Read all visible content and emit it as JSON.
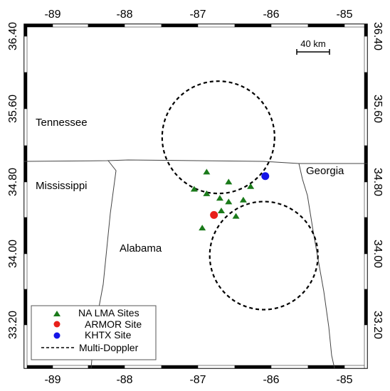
{
  "map": {
    "x_axis": {
      "ticks": [
        "-89",
        "-88",
        "-87",
        "-86",
        "-85"
      ]
    },
    "y_axis": {
      "ticks_left": [
        "36.40",
        "35.60",
        "34.80",
        "34.00",
        "33.20"
      ],
      "ticks_right": [
        "36.40",
        "35.60",
        "34.80",
        "34.00",
        "33.20"
      ]
    },
    "regions": [
      {
        "id": "tennessee",
        "label": "Tennessee"
      },
      {
        "id": "mississippi",
        "label": "Mississippi"
      },
      {
        "id": "alabama",
        "label": "Alabama"
      },
      {
        "id": "georgia",
        "label": "Georgia"
      }
    ],
    "scale_bar": {
      "label": "40 km"
    },
    "sites": {
      "lma": [
        {
          "lon": -86.88,
          "lat": 34.91
        },
        {
          "lon": -87.05,
          "lat": 34.72
        },
        {
          "lon": -86.88,
          "lat": 34.67
        },
        {
          "lon": -86.7,
          "lat": 34.62
        },
        {
          "lon": -86.58,
          "lat": 34.8
        },
        {
          "lon": -86.58,
          "lat": 34.58
        },
        {
          "lon": -86.48,
          "lat": 34.42
        },
        {
          "lon": -86.68,
          "lat": 34.48
        },
        {
          "lon": -86.38,
          "lat": 34.6
        },
        {
          "lon": -86.28,
          "lat": 34.75
        },
        {
          "lon": -86.94,
          "lat": 34.29
        }
      ],
      "armor": {
        "lon": -86.78,
        "lat": 34.43
      },
      "khtx": {
        "lon": -86.08,
        "lat": 34.86
      }
    },
    "doppler_circles": [
      {
        "lon": -86.72,
        "lat": 35.29
      },
      {
        "lon": -86.1,
        "lat": 33.98
      }
    ],
    "colors": {
      "lma": "#1a7a1a",
      "armor": "#e8201a",
      "khtx": "#1414e8",
      "border": "#444444",
      "frame": "#000000"
    },
    "legend": {
      "items": [
        {
          "label": "NA LMA Sites",
          "symbol": "triangle"
        },
        {
          "label": "ARMOR Site",
          "symbol": "red-dot"
        },
        {
          "label": "KHTX Site",
          "symbol": "blue-dot"
        },
        {
          "label": "Multi-Doppler",
          "symbol": "dashed-line"
        }
      ]
    }
  }
}
